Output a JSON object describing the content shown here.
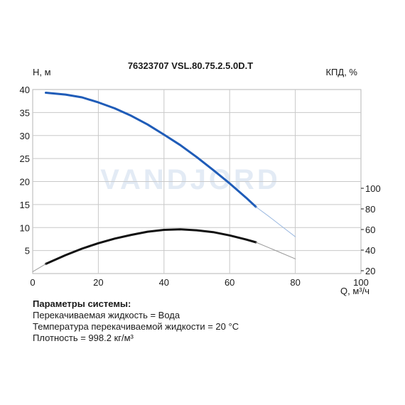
{
  "chart_data": {
    "type": "line",
    "title": "76323707 VSL.80.75.2.5.0D.T",
    "left_axis_label": "H, м",
    "right_axis_label": "КПД, %",
    "xlabel": "Q, м³/ч",
    "xlim": [
      0,
      100
    ],
    "ylim_left": [
      0,
      40
    ],
    "xticks": [
      0,
      20,
      40,
      60,
      80,
      100
    ],
    "yticks_left": [
      5,
      10,
      15,
      20,
      25,
      30,
      35,
      40
    ],
    "yticks_right": [
      20,
      40,
      60,
      80,
      100
    ],
    "grid": true,
    "watermark": "VANDJORD",
    "series": [
      {
        "role": "head",
        "axis": "left",
        "color": "#1f5cb8",
        "x": [
          4,
          10,
          15,
          20,
          25,
          30,
          35,
          40,
          45,
          50,
          55,
          60,
          65,
          68
        ],
        "y": [
          39.3,
          38.9,
          38.3,
          37.2,
          35.9,
          34.3,
          32.4,
          30.2,
          27.9,
          25.3,
          22.5,
          19.6,
          16.5,
          14.5
        ]
      },
      {
        "role": "head-extension",
        "axis": "left",
        "color": "#9ab8e0",
        "x": [
          68,
          72,
          76,
          80
        ],
        "y": [
          14.5,
          12.4,
          10.2,
          8.0
        ]
      },
      {
        "role": "efficiency",
        "axis": "right",
        "color": "#111111",
        "x": [
          4,
          10,
          15,
          20,
          25,
          30,
          35,
          40,
          45,
          50,
          55,
          60,
          65,
          68
        ],
        "y": [
          2.1,
          4.0,
          5.4,
          6.6,
          7.6,
          8.4,
          9.1,
          9.5,
          9.6,
          9.4,
          9.0,
          8.3,
          7.4,
          6.8
        ]
      },
      {
        "role": "efficiency-extension",
        "axis": "right",
        "color": "#999999",
        "x": [
          68,
          72,
          76,
          80
        ],
        "y": [
          6.8,
          5.6,
          4.4,
          3.2
        ]
      },
      {
        "role": "efficiency-start",
        "axis": "right",
        "color": "#999999",
        "x": [
          0,
          4
        ],
        "y": [
          0.4,
          2.1
        ]
      }
    ]
  },
  "system_params": {
    "title": "Параметры системы:",
    "lines": [
      "Перекачиваемая жидкость = Вода",
      "Температура перекачиваемой жидкости = 20 °C",
      "Плотность = 998.2 кг/м³"
    ]
  }
}
